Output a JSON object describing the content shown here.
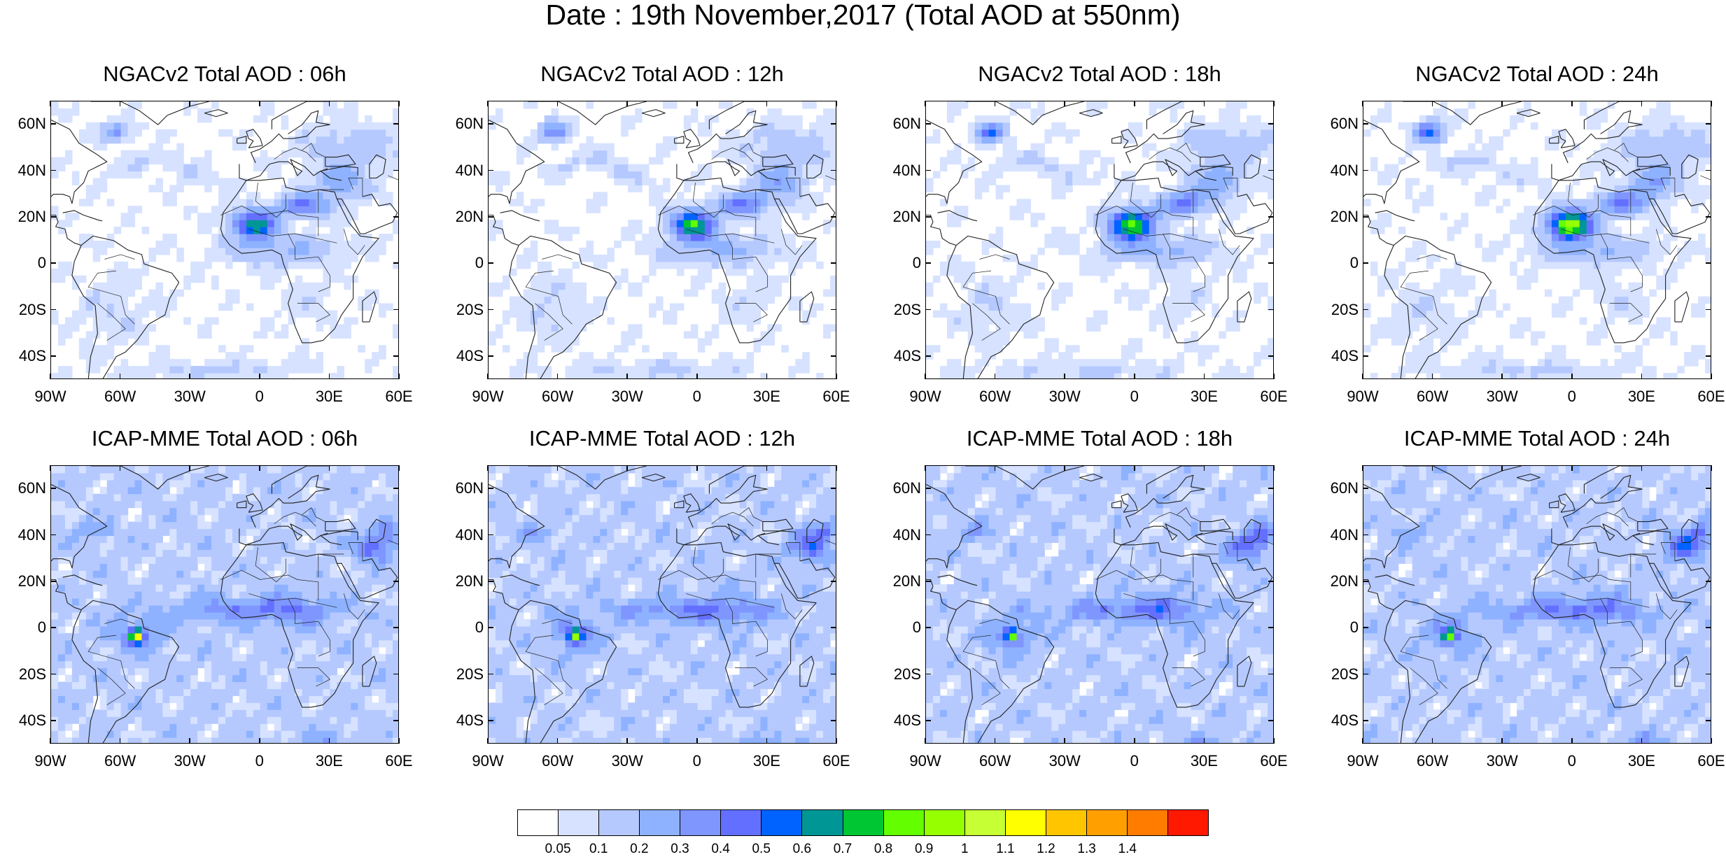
{
  "title": "Date : 19th November,2017 (Total AOD at 550nm)",
  "lat_labels": [
    "60N",
    "40N",
    "20N",
    "0",
    "20S",
    "40S"
  ],
  "lon_labels": [
    "90W",
    "60W",
    "30W",
    "0",
    "30E",
    "60E"
  ],
  "panels": [
    {
      "title": "NGACv2 Total AOD : 06h",
      "model": "ngac",
      "hour": 6
    },
    {
      "title": "NGACv2 Total AOD : 12h",
      "model": "ngac",
      "hour": 12
    },
    {
      "title": "NGACv2 Total AOD : 18h",
      "model": "ngac",
      "hour": 18
    },
    {
      "title": "NGACv2 Total AOD : 24h",
      "model": "ngac",
      "hour": 24
    },
    {
      "title": "ICAP-MME Total AOD : 06h",
      "model": "icap",
      "hour": 6
    },
    {
      "title": "ICAP-MME Total AOD : 12h",
      "model": "icap",
      "hour": 12
    },
    {
      "title": "ICAP-MME Total AOD : 18h",
      "model": "icap",
      "hour": 18
    },
    {
      "title": "ICAP-MME Total AOD : 24h",
      "model": "icap",
      "hour": 24
    }
  ],
  "colorbar": {
    "colors": [
      "#ffffff",
      "#d6e2ff",
      "#b5c9ff",
      "#8eb2ff",
      "#7f96ff",
      "#6370ff",
      "#0063ff",
      "#009696",
      "#00c633",
      "#63ff00",
      "#96ff00",
      "#c6ff33",
      "#ffff00",
      "#ffc600",
      "#ffa000",
      "#ff7c00",
      "#ff1900"
    ],
    "labels": [
      "0.05",
      "0.1",
      "0.2",
      "0.3",
      "0.4",
      "0.5",
      "0.6",
      "0.7",
      "0.8",
      "0.9",
      "1",
      "1.1",
      "1.2",
      "1.3",
      "1.4"
    ]
  }
}
